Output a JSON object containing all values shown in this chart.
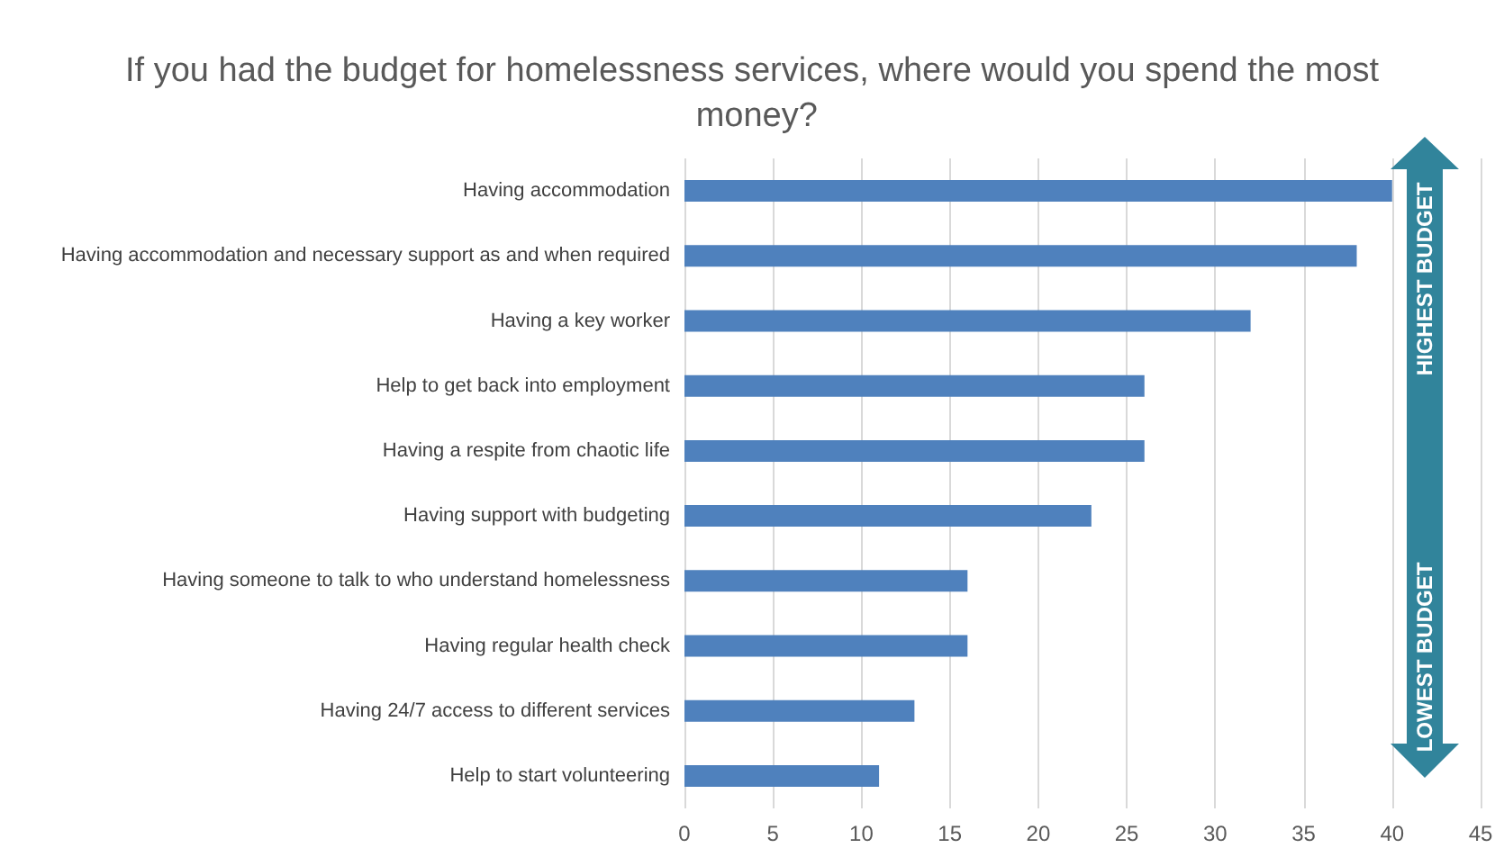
{
  "chart_data": {
    "type": "bar",
    "orientation": "horizontal",
    "title": "If you had the budget for homelessness services, where would you spend the most money?",
    "categories": [
      "Having accommodation",
      "Having accommodation and necessary support as and when required",
      "Having a key worker",
      "Help to get back into employment",
      "Having a respite from chaotic life",
      "Having support with budgeting",
      "Having someone to talk to who understand homelessness",
      "Having regular health check",
      "Having 24/7 access to different services",
      "Help to start volunteering"
    ],
    "values": [
      40,
      38,
      32,
      26,
      26,
      23,
      16,
      16,
      13,
      11
    ],
    "color": "#4f81bd",
    "xlim": [
      0,
      45
    ],
    "xticks": [
      0,
      5,
      10,
      15,
      20,
      25,
      30,
      35,
      40,
      45
    ],
    "grid": "x",
    "annotations": [
      "HIGHEST BUDGET",
      "LOWEST BUDGET"
    ]
  }
}
